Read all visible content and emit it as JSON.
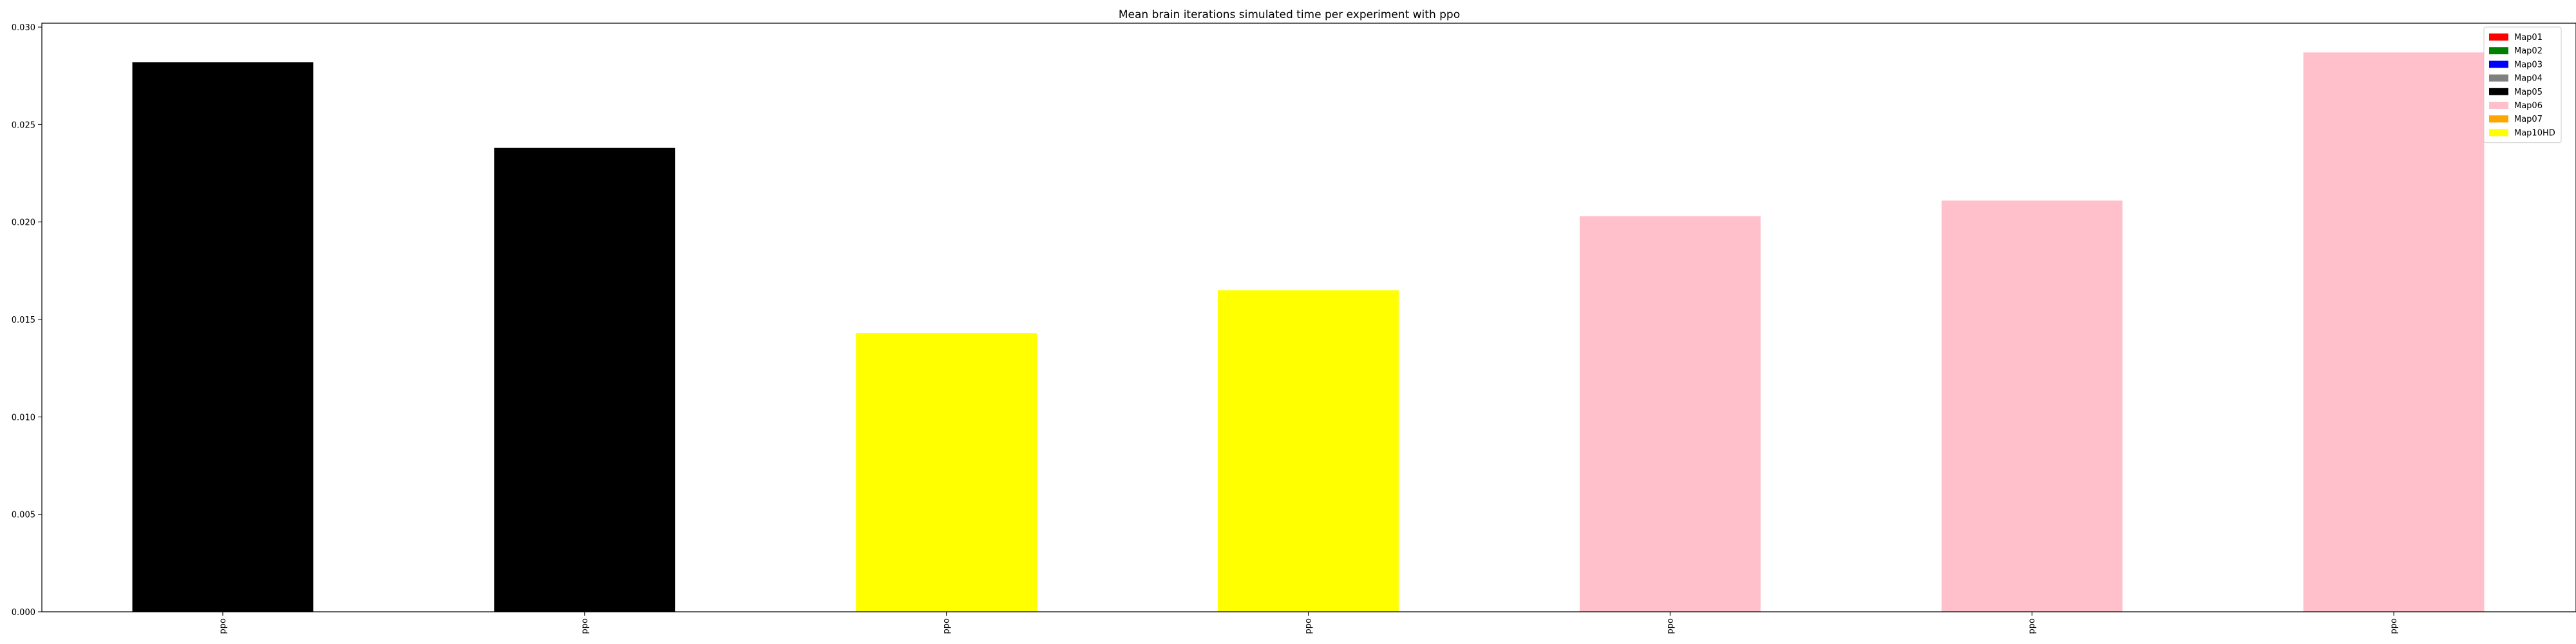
{
  "chart_data": {
    "type": "bar",
    "title": "Mean brain iterations simulated time per experiment with ppo",
    "xlabel": "",
    "ylabel": "",
    "categories": [
      "ppo",
      "ppo",
      "ppo",
      "ppo",
      "ppo",
      "ppo",
      "ppo"
    ],
    "values": [
      0.0282,
      0.0238,
      0.0143,
      0.0165,
      0.0203,
      0.0211,
      0.0287
    ],
    "bar_colors": [
      "#000000",
      "#000000",
      "#ffff00",
      "#ffff00",
      "#ffc0cb",
      "#ffc0cb",
      "#ffc0cb"
    ],
    "ylim": [
      0,
      0.0302
    ],
    "yticks": [
      "0.000",
      "0.005",
      "0.010",
      "0.015",
      "0.020",
      "0.025",
      "0.030"
    ],
    "grid": false,
    "legend_position": "top-right",
    "legend": [
      {
        "name": "Map01",
        "color": "#ff0000"
      },
      {
        "name": "Map02",
        "color": "#008000"
      },
      {
        "name": "Map03",
        "color": "#0000ff"
      },
      {
        "name": "Map04",
        "color": "#808080"
      },
      {
        "name": "Map05",
        "color": "#000000"
      },
      {
        "name": "Map06",
        "color": "#ffc0cb"
      },
      {
        "name": "Map07",
        "color": "#ffa500"
      },
      {
        "name": "Map10HD",
        "color": "#ffff00"
      }
    ]
  }
}
